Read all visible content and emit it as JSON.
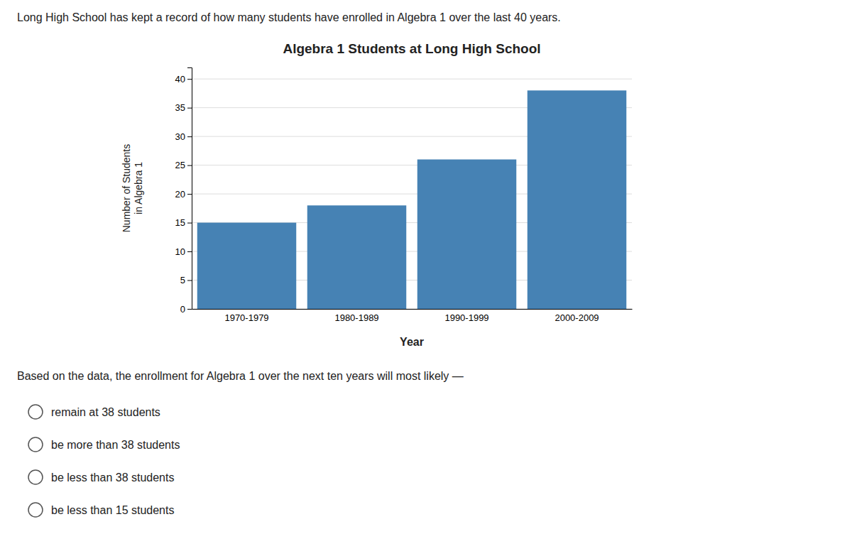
{
  "chart_data": {
    "type": "bar",
    "title": "Algebra 1 Students at Long High School",
    "x_label": "Year",
    "y_label": "Number of Students\nin Algebra 1",
    "categories": [
      "1970-1979",
      "1980-1989",
      "1990-1999",
      "2000-2009"
    ],
    "values": [
      15,
      18,
      26,
      38
    ],
    "ylim": [
      0,
      42
    ],
    "yticks": [
      0,
      5,
      10,
      15,
      20,
      25,
      30,
      35,
      40
    ],
    "grid": true
  },
  "header": "Long High School has kept a record of how many students have enrolled in Algebra 1 over the last 40 years.",
  "question": "Based on the data, the enrollment for Algebra 1 over the next ten years will most likely —",
  "options": [
    "remain at 38 students",
    "be more than 38 students",
    "be less than 38 students",
    "be less than 15 students"
  ]
}
